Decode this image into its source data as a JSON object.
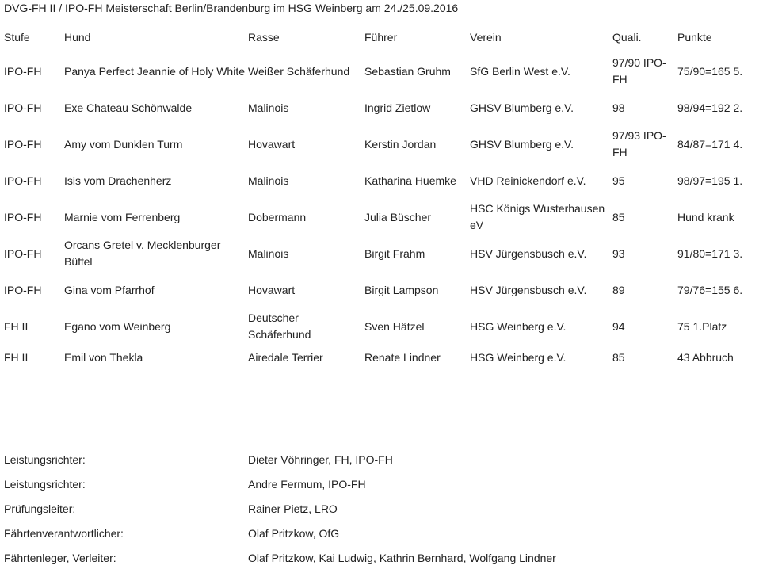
{
  "title": "DVG-FH II / IPO-FH Meisterschaft Berlin/Brandenburg im HSG Weinberg am 24./25.09.2016",
  "columns": [
    "Stufe",
    "Hund",
    "Rasse",
    "Führer",
    "Verein",
    "Quali.",
    "Punkte"
  ],
  "rows": [
    [
      "IPO-FH",
      "Panya Perfect Jeannie of  Holy White",
      "Weißer Schäferhund",
      "Sebastian Gruhm",
      "SfG Berlin West e.V.",
      "97/90 IPO-FH",
      "75/90=165 5."
    ],
    [
      "IPO-FH",
      "Exe Chateau Schönwalde",
      "Malinois",
      "Ingrid Zietlow",
      "GHSV Blumberg e.V.",
      "98",
      "98/94=192 2."
    ],
    [
      "IPO-FH",
      "Amy vom Dunklen Turm",
      "Hovawart",
      "Kerstin Jordan",
      "GHSV Blumberg e.V.",
      "97/93 IPO-FH",
      "84/87=171 4."
    ],
    [
      "IPO-FH",
      "Isis vom Drachenherz",
      "Malinois",
      "Katharina Huemke",
      "VHD Reinickendorf e.V.",
      "95",
      "98/97=195 1."
    ],
    [
      "IPO-FH",
      "Marnie vom Ferrenberg",
      "Dobermann",
      "Julia Büscher",
      "HSC Königs Wusterhausen eV",
      "85",
      "Hund krank"
    ],
    [
      "IPO-FH",
      "Orcans Gretel v. Mecklenburger Büffel",
      "Malinois",
      "Birgit Frahm",
      "HSV Jürgensbusch e.V.",
      "93",
      "91/80=171 3."
    ],
    [
      "IPO-FH",
      "Gina vom Pfarrhof",
      "Hovawart",
      "Birgit Lampson",
      "HSV Jürgensbusch e.V.",
      "89",
      "79/76=155 6."
    ],
    [
      "FH II",
      "Egano vom Weinberg",
      "Deutscher Schäferhund",
      "Sven Hätzel",
      "HSG Weinberg e.V.",
      "94",
      "75 1.Platz"
    ],
    [
      "FH II",
      "Emil von Thekla",
      "Airedale Terrier",
      "Renate Lindner",
      "HSG Weinberg e.V.",
      "85",
      "43 Abbruch"
    ]
  ],
  "officials": [
    {
      "role": "Leistungsrichter:",
      "name": "Dieter Vöhringer, FH, IPO-FH"
    },
    {
      "role": "Leistungsrichter:",
      "name": "Andre Fermum, IPO-FH"
    },
    {
      "role": "Prüfungsleiter:",
      "name": "Rainer Pietz, LRO"
    },
    {
      "role": "Fährtenverantwortlicher:",
      "name": "Olaf Pritzkow, OfG"
    },
    {
      "role": "Fährtenleger, Verleiter:",
      "name": "Olaf Pritzkow, Kai Ludwig, Kathrin Bernhard, Wolfgang Lindner"
    }
  ]
}
